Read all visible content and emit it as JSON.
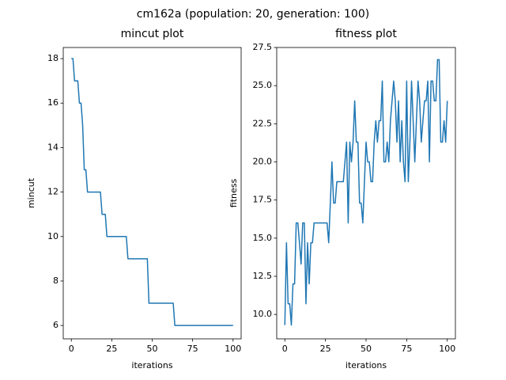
{
  "title": "cm162a (population: 20, generation: 100)",
  "chart_data": [
    {
      "type": "line",
      "title": "mincut plot",
      "x_label": "iterations",
      "y_label": "mincut",
      "color": "#1f77b4",
      "x": [
        0,
        1,
        2,
        3,
        4,
        5,
        6,
        7,
        8,
        9,
        10,
        11,
        12,
        13,
        14,
        15,
        16,
        17,
        18,
        19,
        20,
        21,
        22,
        23,
        24,
        25,
        26,
        27,
        28,
        29,
        30,
        31,
        32,
        33,
        34,
        35,
        36,
        37,
        38,
        39,
        40,
        41,
        42,
        43,
        44,
        45,
        46,
        47,
        48,
        49,
        50,
        51,
        52,
        53,
        54,
        55,
        56,
        57,
        58,
        59,
        60,
        61,
        62,
        63,
        64,
        65,
        66,
        67,
        68,
        69,
        70,
        71,
        72,
        73,
        74,
        75,
        76,
        77,
        78,
        79,
        80,
        81,
        82,
        83,
        84,
        85,
        86,
        87,
        88,
        89,
        90,
        91,
        92,
        93,
        94,
        95,
        96,
        97,
        98,
        99,
        100
      ],
      "values": [
        18,
        18,
        17,
        17,
        17,
        16,
        16,
        15,
        13,
        13,
        12,
        12,
        12,
        12,
        12,
        12,
        12,
        12,
        12,
        11,
        11,
        11,
        10,
        10,
        10,
        10,
        10,
        10,
        10,
        10,
        10,
        10,
        10,
        10,
        10,
        9,
        9,
        9,
        9,
        9,
        9,
        9,
        9,
        9,
        9,
        9,
        9,
        9,
        7,
        7,
        7,
        7,
        7,
        7,
        7,
        7,
        7,
        7,
        7,
        7,
        7,
        7,
        7,
        7,
        6,
        6,
        6,
        6,
        6,
        6,
        6,
        6,
        6,
        6,
        6,
        6,
        6,
        6,
        6,
        6,
        6,
        6,
        6,
        6,
        6,
        6,
        6,
        6,
        6,
        6,
        6,
        6,
        6,
        6,
        6,
        6,
        6,
        6,
        6,
        6,
        6
      ],
      "xlim": [
        -5,
        105
      ],
      "ylim": [
        5.4,
        18.5
      ],
      "xticks": [
        0,
        25,
        50,
        75,
        100
      ],
      "yticks": [
        6,
        8,
        10,
        12,
        14,
        16,
        18
      ]
    },
    {
      "type": "line",
      "title": "fitness plot",
      "x_label": "iterations",
      "y_label": "fitness",
      "color": "#1f77b4",
      "x": [
        0,
        1,
        2,
        3,
        4,
        5,
        6,
        7,
        8,
        9,
        10,
        11,
        12,
        13,
        14,
        15,
        16,
        17,
        18,
        19,
        20,
        21,
        22,
        23,
        24,
        25,
        26,
        27,
        28,
        29,
        30,
        31,
        32,
        33,
        34,
        35,
        36,
        37,
        38,
        39,
        40,
        41,
        42,
        43,
        44,
        45,
        46,
        47,
        48,
        49,
        50,
        51,
        52,
        53,
        54,
        55,
        56,
        57,
        58,
        59,
        60,
        61,
        62,
        63,
        64,
        65,
        66,
        67,
        68,
        69,
        70,
        71,
        72,
        73,
        74,
        75,
        76,
        77,
        78,
        79,
        80,
        81,
        82,
        83,
        84,
        85,
        86,
        87,
        88,
        89,
        90,
        91,
        92,
        93,
        94,
        95,
        96,
        97,
        98,
        99,
        100
      ],
      "values": [
        9.3,
        14.7,
        10.7,
        10.7,
        9.3,
        12,
        12,
        16,
        16,
        14.7,
        13.3,
        16,
        16,
        10.7,
        14.7,
        12,
        14.7,
        14.7,
        16,
        16,
        16,
        16,
        16,
        16,
        16,
        16,
        16,
        14.7,
        17.3,
        20,
        17.3,
        17.3,
        18.7,
        18.7,
        18.7,
        18.7,
        18.7,
        20,
        21.3,
        16,
        21.3,
        20,
        21.3,
        24,
        21.3,
        21.3,
        17.3,
        17.3,
        16,
        18.7,
        21.3,
        20,
        20,
        18.7,
        18.7,
        21.3,
        22.7,
        21.3,
        22.7,
        22.7,
        25.3,
        20,
        20,
        21.3,
        20,
        22.7,
        24,
        25.3,
        24,
        21.3,
        24,
        20,
        22.7,
        20,
        18.7,
        25.3,
        18.7,
        21.3,
        25.3,
        22.7,
        20,
        22.7,
        25.3,
        24,
        21.3,
        22.7,
        24,
        24,
        25.3,
        20,
        25.3,
        25.3,
        24,
        24,
        26.7,
        26.7,
        21.3,
        21.3,
        22.7,
        21.3,
        24
      ],
      "xlim": [
        -5,
        105
      ],
      "ylim": [
        8.4,
        27.5
      ],
      "xticks": [
        0,
        25,
        50,
        75,
        100
      ],
      "yticks": [
        {
          "value": 10,
          "label": "10.0"
        },
        12.5,
        {
          "value": 15,
          "label": "15.0"
        },
        17.5,
        {
          "value": 20,
          "label": "20.0"
        },
        22.5,
        {
          "value": 25,
          "label": "25.0"
        },
        27.5
      ]
    }
  ]
}
